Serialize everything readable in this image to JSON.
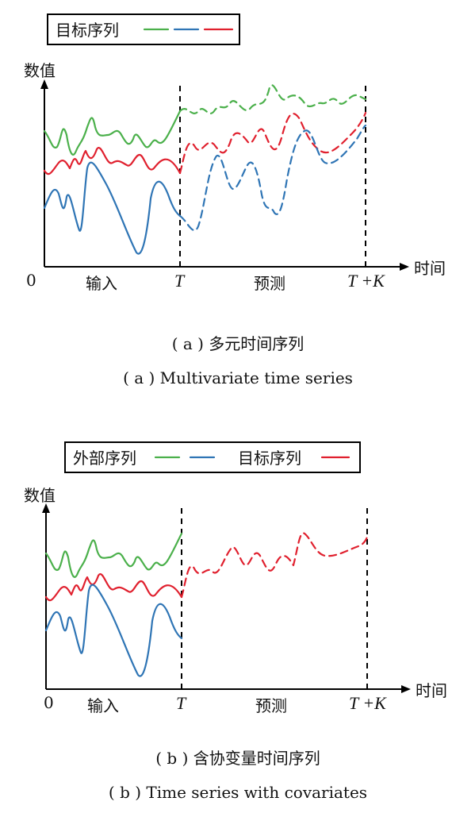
{
  "panel_a": {
    "legend": {
      "label": "目标序列"
    },
    "y_axis_label": "数值",
    "x_axis_label": "时间",
    "origin_label": "0",
    "input_label": "输入",
    "t_label": "T",
    "forecast_label": "预测",
    "tk_label": "T +K",
    "caption_cn": "( a ) 多元时间序列",
    "caption_en": "( a ) Multivariate time series"
  },
  "panel_b": {
    "legend": {
      "label_external": "外部序列",
      "label_target": "目标序列"
    },
    "y_axis_label": "数值",
    "x_axis_label": "时间",
    "origin_label": "0",
    "input_label": "输入",
    "t_label": "T",
    "forecast_label": "预测",
    "tk_label": "T +K",
    "caption_cn": "( b ) 含协变量时间序列",
    "caption_en": "( b ) Time series with covariates"
  },
  "colors": {
    "green": "#4bb04b",
    "blue": "#2f75b5",
    "red": "#e0202e"
  }
}
